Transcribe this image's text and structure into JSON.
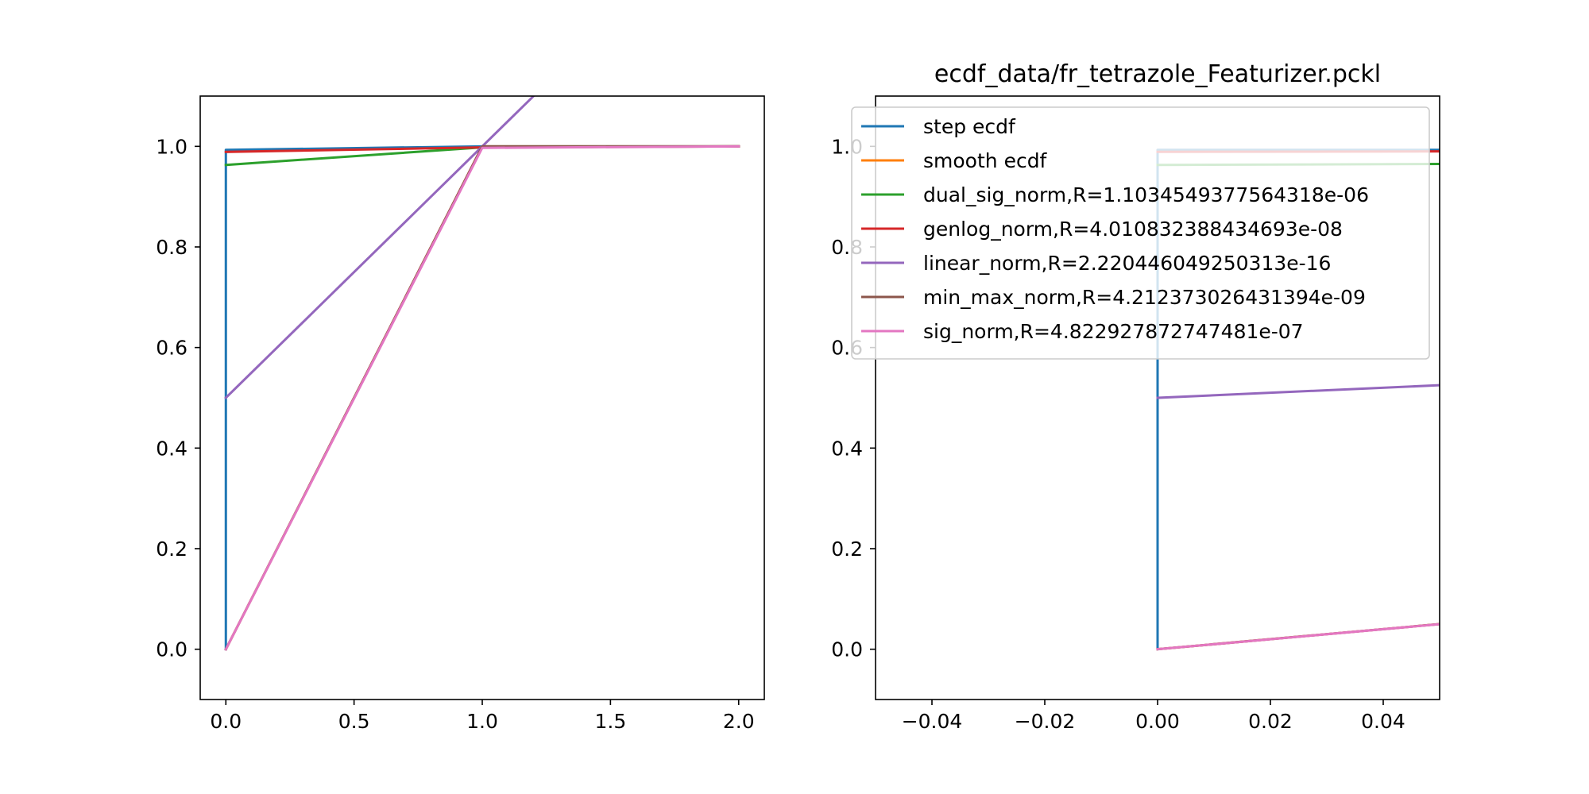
{
  "chart_data": [
    {
      "type": "line",
      "title": "",
      "xlabel": "",
      "ylabel": "",
      "xlim": [
        -0.1,
        2.1
      ],
      "ylim": [
        -0.1,
        1.1
      ],
      "xticks": [
        0.0,
        0.5,
        1.0,
        1.5,
        2.0
      ],
      "xtick_labels": [
        "0.0",
        "0.5",
        "1.0",
        "1.5",
        "2.0"
      ],
      "yticks": [
        0.0,
        0.2,
        0.4,
        0.6,
        0.8,
        1.0
      ],
      "ytick_labels": [
        "0.0",
        "0.2",
        "0.4",
        "0.6",
        "0.8",
        "1.0"
      ],
      "grid": false,
      "series": [
        {
          "color": "#1f77b4",
          "x": [
            0,
            0,
            1,
            2
          ],
          "y": [
            0.0,
            0.993,
            1.0,
            1.0
          ]
        },
        {
          "color": "#ff7f0e",
          "x": [
            0,
            1,
            2
          ],
          "y": [
            0.0,
            1.0,
            1.0
          ]
        },
        {
          "color": "#2ca02c",
          "x": [
            0,
            1,
            2
          ],
          "y": [
            0.963,
            0.998,
            1.0
          ]
        },
        {
          "color": "#d62728",
          "x": [
            0,
            1,
            2
          ],
          "y": [
            0.989,
            0.998,
            1.0
          ]
        },
        {
          "color": "#9467bd",
          "x": [
            0,
            2
          ],
          "y": [
            0.5,
            1.5
          ]
        },
        {
          "color": "#8c564b",
          "x": [
            0,
            1,
            2
          ],
          "y": [
            0.0,
            1.0,
            1.0
          ]
        },
        {
          "color": "#e377c2",
          "x": [
            0,
            1,
            2
          ],
          "y": [
            0.0,
            0.997,
            1.0
          ]
        }
      ]
    },
    {
      "type": "line",
      "title": "ecdf_data/fr_tetrazole_Featurizer.pckl",
      "xlabel": "",
      "ylabel": "",
      "xlim": [
        -0.05,
        0.05
      ],
      "ylim": [
        -0.1,
        1.1
      ],
      "xticks": [
        -0.04,
        -0.02,
        0.0,
        0.02,
        0.04
      ],
      "xtick_labels": [
        "−0.04",
        "−0.02",
        "0.00",
        "0.02",
        "0.04"
      ],
      "yticks": [
        0.0,
        0.2,
        0.4,
        0.6,
        0.8,
        1.0
      ],
      "ytick_labels": [
        "0.0",
        "0.2",
        "0.4",
        "0.6",
        "0.8",
        "1.0"
      ],
      "grid": false,
      "legend_position": "top-right",
      "legend": [
        {
          "label": "step ecdf",
          "color": "#1f77b4"
        },
        {
          "label": "smooth ecdf",
          "color": "#ff7f0e"
        },
        {
          "label": "dual_sig_norm,R=1.1034549377564318e-06",
          "color": "#2ca02c"
        },
        {
          "label": "genlog_norm,R=4.010832388434693e-08",
          "color": "#d62728"
        },
        {
          "label": "linear_norm,R=2.220446049250313e-16",
          "color": "#9467bd"
        },
        {
          "label": "min_max_norm,R=4.212373026431394e-09",
          "color": "#8c564b"
        },
        {
          "label": "sig_norm,R=4.822927872747481e-07",
          "color": "#e377c2"
        }
      ],
      "series": [
        {
          "color": "#1f77b4",
          "x": [
            0,
            0,
            0.05
          ],
          "y": [
            0.0,
            0.993,
            0.993
          ]
        },
        {
          "color": "#ff7f0e",
          "x": [
            0,
            0.05
          ],
          "y": [
            0.0,
            0.05
          ]
        },
        {
          "color": "#2ca02c",
          "x": [
            0,
            0.05
          ],
          "y": [
            0.963,
            0.965
          ]
        },
        {
          "color": "#d62728",
          "x": [
            0,
            0.05
          ],
          "y": [
            0.989,
            0.99
          ]
        },
        {
          "color": "#9467bd",
          "x": [
            0,
            0.05
          ],
          "y": [
            0.5,
            0.525
          ]
        },
        {
          "color": "#8c564b",
          "x": [
            0,
            0.05
          ],
          "y": [
            0.0,
            0.05
          ]
        },
        {
          "color": "#e377c2",
          "x": [
            0,
            0.05
          ],
          "y": [
            0.0,
            0.0498
          ]
        }
      ]
    }
  ]
}
